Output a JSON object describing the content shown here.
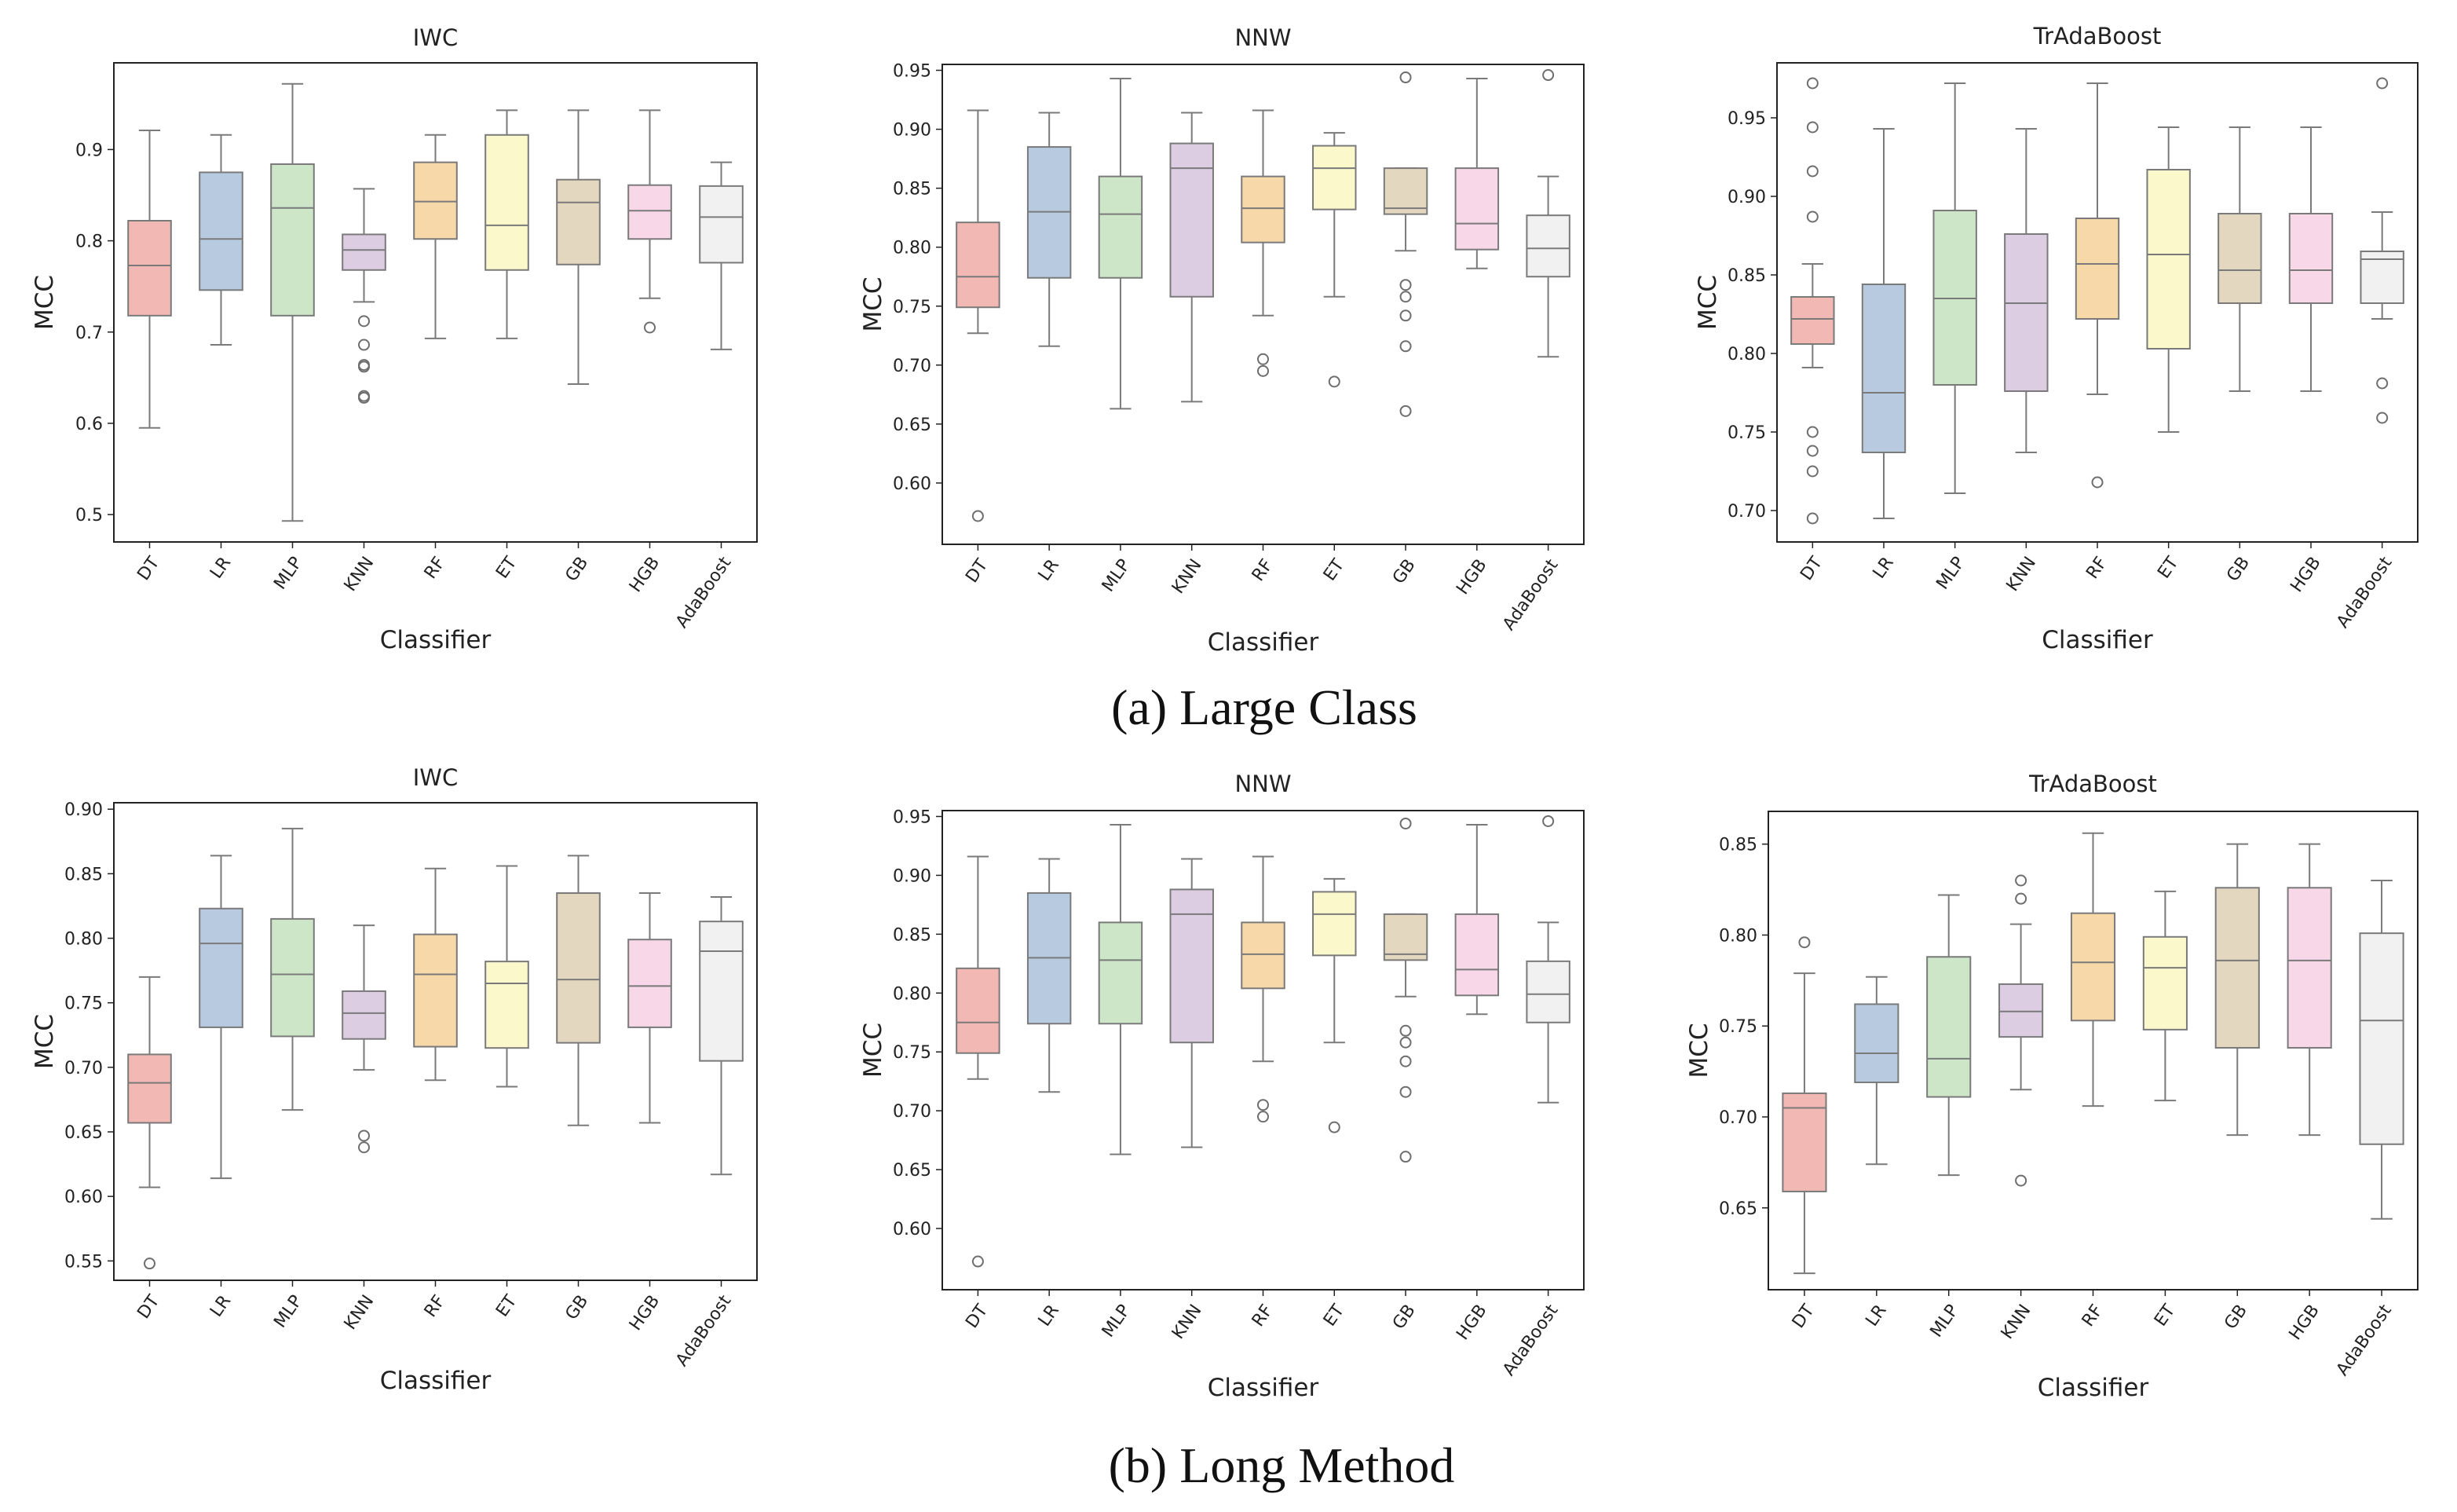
{
  "captions": {
    "top": "(a) Large Class",
    "bottom": "(b) Long Method"
  },
  "palette": [
    "#f2b8b4",
    "#b7cadf",
    "#cde6c7",
    "#dccde2",
    "#f6d8a9",
    "#fbf9cb",
    "#e4d7c0",
    "#f7d7e8",
    "#f1f1f1"
  ],
  "chart_data": [
    {
      "type": "box",
      "title": "IWC",
      "xlabel": "Classifier",
      "ylabel": "MCC",
      "ylim": [
        0.47,
        0.995
      ],
      "yticks": [
        0.5,
        0.6,
        0.7,
        0.8,
        0.9
      ],
      "ytick_labels": [
        "0.5",
        "0.6",
        "0.7",
        "0.8",
        "0.9"
      ],
      "categories": [
        "DT",
        "LR",
        "MLP",
        "KNN",
        "RF",
        "ET",
        "GB",
        "HGB",
        "AdaBoost"
      ],
      "boxes": [
        {
          "whislo": 0.595,
          "q1": 0.718,
          "med": 0.773,
          "q3": 0.822,
          "whishi": 0.921,
          "fliers": []
        },
        {
          "whislo": 0.686,
          "q1": 0.746,
          "med": 0.802,
          "q3": 0.875,
          "whishi": 0.916,
          "fliers": []
        },
        {
          "whislo": 0.493,
          "q1": 0.718,
          "med": 0.836,
          "q3": 0.884,
          "whishi": 0.972,
          "fliers": []
        },
        {
          "whislo": 0.733,
          "q1": 0.768,
          "med": 0.79,
          "q3": 0.807,
          "whishi": 0.857,
          "fliers": [
            0.712,
            0.686,
            0.664,
            0.662,
            0.63,
            0.628
          ]
        },
        {
          "whislo": 0.693,
          "q1": 0.802,
          "med": 0.843,
          "q3": 0.886,
          "whishi": 0.916,
          "fliers": []
        },
        {
          "whislo": 0.693,
          "q1": 0.768,
          "med": 0.817,
          "q3": 0.916,
          "whishi": 0.943,
          "fliers": []
        },
        {
          "whislo": 0.643,
          "q1": 0.774,
          "med": 0.842,
          "q3": 0.867,
          "whishi": 0.943,
          "fliers": []
        },
        {
          "whislo": 0.737,
          "q1": 0.802,
          "med": 0.833,
          "q3": 0.861,
          "whishi": 0.943,
          "fliers": [
            0.705
          ]
        },
        {
          "whislo": 0.681,
          "q1": 0.776,
          "med": 0.826,
          "q3": 0.86,
          "whishi": 0.886,
          "fliers": []
        }
      ]
    },
    {
      "type": "box",
      "title": "NNW",
      "xlabel": "Classifier",
      "ylabel": "MCC",
      "ylim": [
        0.548,
        0.955
      ],
      "yticks": [
        0.6,
        0.65,
        0.7,
        0.75,
        0.8,
        0.85,
        0.9,
        0.95
      ],
      "ytick_labels": [
        "0.60",
        "0.65",
        "0.70",
        "0.75",
        "0.80",
        "0.85",
        "0.90",
        "0.95"
      ],
      "categories": [
        "DT",
        "LR",
        "MLP",
        "KNN",
        "RF",
        "ET",
        "GB",
        "HGB",
        "AdaBoost"
      ],
      "boxes": [
        {
          "whislo": 0.727,
          "q1": 0.749,
          "med": 0.775,
          "q3": 0.821,
          "whishi": 0.916,
          "fliers": [
            0.572
          ]
        },
        {
          "whislo": 0.716,
          "q1": 0.774,
          "med": 0.83,
          "q3": 0.885,
          "whishi": 0.914,
          "fliers": []
        },
        {
          "whislo": 0.663,
          "q1": 0.774,
          "med": 0.828,
          "q3": 0.86,
          "whishi": 0.943,
          "fliers": []
        },
        {
          "whislo": 0.669,
          "q1": 0.758,
          "med": 0.867,
          "q3": 0.888,
          "whishi": 0.914,
          "fliers": []
        },
        {
          "whislo": 0.742,
          "q1": 0.804,
          "med": 0.833,
          "q3": 0.86,
          "whishi": 0.916,
          "fliers": [
            0.705,
            0.695
          ]
        },
        {
          "whislo": 0.758,
          "q1": 0.832,
          "med": 0.867,
          "q3": 0.886,
          "whishi": 0.897,
          "fliers": [
            0.686
          ]
        },
        {
          "whislo": 0.797,
          "q1": 0.828,
          "med": 0.833,
          "q3": 0.867,
          "whishi": 0.867,
          "fliers": [
            0.944,
            0.768,
            0.758,
            0.742,
            0.716,
            0.661
          ]
        },
        {
          "whislo": 0.782,
          "q1": 0.798,
          "med": 0.82,
          "q3": 0.867,
          "whishi": 0.943,
          "fliers": []
        },
        {
          "whislo": 0.707,
          "q1": 0.775,
          "med": 0.799,
          "q3": 0.827,
          "whishi": 0.86,
          "fliers": [
            0.946
          ]
        }
      ]
    },
    {
      "type": "box",
      "title": "TrAdaBoost",
      "xlabel": "Classifier",
      "ylabel": "MCC",
      "ylim": [
        0.68,
        0.985
      ],
      "yticks": [
        0.7,
        0.75,
        0.8,
        0.85,
        0.9,
        0.95
      ],
      "ytick_labels": [
        "0.70",
        "0.75",
        "0.80",
        "0.85",
        "0.90",
        "0.95"
      ],
      "categories": [
        "DT",
        "LR",
        "MLP",
        "KNN",
        "RF",
        "ET",
        "GB",
        "HGB",
        "AdaBoost"
      ],
      "boxes": [
        {
          "whislo": 0.791,
          "q1": 0.806,
          "med": 0.822,
          "q3": 0.836,
          "whishi": 0.857,
          "fliers": [
            0.972,
            0.944,
            0.916,
            0.887,
            0.75,
            0.738,
            0.725,
            0.695
          ]
        },
        {
          "whislo": 0.695,
          "q1": 0.737,
          "med": 0.775,
          "q3": 0.844,
          "whishi": 0.943,
          "fliers": []
        },
        {
          "whislo": 0.711,
          "q1": 0.78,
          "med": 0.835,
          "q3": 0.891,
          "whishi": 0.972,
          "fliers": []
        },
        {
          "whislo": 0.737,
          "q1": 0.776,
          "med": 0.832,
          "q3": 0.876,
          "whishi": 0.943,
          "fliers": []
        },
        {
          "whislo": 0.774,
          "q1": 0.822,
          "med": 0.857,
          "q3": 0.886,
          "whishi": 0.972,
          "fliers": [
            0.718
          ]
        },
        {
          "whislo": 0.75,
          "q1": 0.803,
          "med": 0.863,
          "q3": 0.917,
          "whishi": 0.944,
          "fliers": []
        },
        {
          "whislo": 0.776,
          "q1": 0.832,
          "med": 0.853,
          "q3": 0.889,
          "whishi": 0.944,
          "fliers": []
        },
        {
          "whislo": 0.776,
          "q1": 0.832,
          "med": 0.853,
          "q3": 0.889,
          "whishi": 0.944,
          "fliers": []
        },
        {
          "whislo": 0.822,
          "q1": 0.832,
          "med": 0.86,
          "q3": 0.865,
          "whishi": 0.89,
          "fliers": [
            0.972,
            0.781,
            0.759
          ]
        }
      ]
    },
    {
      "type": "box",
      "title": "IWC",
      "xlabel": "Classifier",
      "ylabel": "MCC",
      "ylim": [
        0.535,
        0.905
      ],
      "yticks": [
        0.55,
        0.6,
        0.65,
        0.7,
        0.75,
        0.8,
        0.85,
        0.9
      ],
      "ytick_labels": [
        "0.55",
        "0.60",
        "0.65",
        "0.70",
        "0.75",
        "0.80",
        "0.85",
        "0.90"
      ],
      "categories": [
        "DT",
        "LR",
        "MLP",
        "KNN",
        "RF",
        "ET",
        "GB",
        "HGB",
        "AdaBoost"
      ],
      "boxes": [
        {
          "whislo": 0.607,
          "q1": 0.657,
          "med": 0.688,
          "q3": 0.71,
          "whishi": 0.77,
          "fliers": [
            0.548
          ]
        },
        {
          "whislo": 0.614,
          "q1": 0.731,
          "med": 0.796,
          "q3": 0.823,
          "whishi": 0.864,
          "fliers": []
        },
        {
          "whislo": 0.667,
          "q1": 0.724,
          "med": 0.772,
          "q3": 0.815,
          "whishi": 0.885,
          "fliers": []
        },
        {
          "whislo": 0.698,
          "q1": 0.722,
          "med": 0.742,
          "q3": 0.759,
          "whishi": 0.81,
          "fliers": [
            0.647,
            0.638
          ]
        },
        {
          "whislo": 0.69,
          "q1": 0.716,
          "med": 0.772,
          "q3": 0.803,
          "whishi": 0.854,
          "fliers": []
        },
        {
          "whislo": 0.685,
          "q1": 0.715,
          "med": 0.765,
          "q3": 0.782,
          "whishi": 0.856,
          "fliers": []
        },
        {
          "whislo": 0.655,
          "q1": 0.719,
          "med": 0.768,
          "q3": 0.835,
          "whishi": 0.864,
          "fliers": []
        },
        {
          "whislo": 0.657,
          "q1": 0.731,
          "med": 0.763,
          "q3": 0.799,
          "whishi": 0.835,
          "fliers": []
        },
        {
          "whislo": 0.617,
          "q1": 0.705,
          "med": 0.79,
          "q3": 0.813,
          "whishi": 0.832,
          "fliers": []
        }
      ]
    },
    {
      "type": "box",
      "title": "NNW",
      "xlabel": "Classifier",
      "ylabel": "MCC",
      "ylim": [
        0.548,
        0.955
      ],
      "yticks": [
        0.6,
        0.65,
        0.7,
        0.75,
        0.8,
        0.85,
        0.9,
        0.95
      ],
      "ytick_labels": [
        "0.60",
        "0.65",
        "0.70",
        "0.75",
        "0.80",
        "0.85",
        "0.90",
        "0.95"
      ],
      "categories": [
        "DT",
        "LR",
        "MLP",
        "KNN",
        "RF",
        "ET",
        "GB",
        "HGB",
        "AdaBoost"
      ],
      "boxes": [
        {
          "whislo": 0.727,
          "q1": 0.749,
          "med": 0.775,
          "q3": 0.821,
          "whishi": 0.916,
          "fliers": [
            0.572
          ]
        },
        {
          "whislo": 0.716,
          "q1": 0.774,
          "med": 0.83,
          "q3": 0.885,
          "whishi": 0.914,
          "fliers": []
        },
        {
          "whislo": 0.663,
          "q1": 0.774,
          "med": 0.828,
          "q3": 0.86,
          "whishi": 0.943,
          "fliers": []
        },
        {
          "whislo": 0.669,
          "q1": 0.758,
          "med": 0.867,
          "q3": 0.888,
          "whishi": 0.914,
          "fliers": []
        },
        {
          "whislo": 0.742,
          "q1": 0.804,
          "med": 0.833,
          "q3": 0.86,
          "whishi": 0.916,
          "fliers": [
            0.705,
            0.695
          ]
        },
        {
          "whislo": 0.758,
          "q1": 0.832,
          "med": 0.867,
          "q3": 0.886,
          "whishi": 0.897,
          "fliers": [
            0.686
          ]
        },
        {
          "whislo": 0.797,
          "q1": 0.828,
          "med": 0.833,
          "q3": 0.867,
          "whishi": 0.867,
          "fliers": [
            0.944,
            0.768,
            0.758,
            0.742,
            0.716,
            0.661
          ]
        },
        {
          "whislo": 0.782,
          "q1": 0.798,
          "med": 0.82,
          "q3": 0.867,
          "whishi": 0.943,
          "fliers": []
        },
        {
          "whislo": 0.707,
          "q1": 0.775,
          "med": 0.799,
          "q3": 0.827,
          "whishi": 0.86,
          "fliers": [
            0.946
          ]
        }
      ]
    },
    {
      "type": "box",
      "title": "TrAdaBoost",
      "xlabel": "Classifier",
      "ylabel": "MCC",
      "ylim": [
        0.605,
        0.868
      ],
      "yticks": [
        0.65,
        0.7,
        0.75,
        0.8,
        0.85
      ],
      "ytick_labels": [
        "0.65",
        "0.70",
        "0.75",
        "0.80",
        "0.85"
      ],
      "categories": [
        "DT",
        "LR",
        "MLP",
        "KNN",
        "RF",
        "ET",
        "GB",
        "HGB",
        "AdaBoost"
      ],
      "boxes": [
        {
          "whislo": 0.614,
          "q1": 0.659,
          "med": 0.705,
          "q3": 0.713,
          "whishi": 0.779,
          "fliers": [
            0.796
          ]
        },
        {
          "whislo": 0.674,
          "q1": 0.719,
          "med": 0.735,
          "q3": 0.762,
          "whishi": 0.777,
          "fliers": []
        },
        {
          "whislo": 0.668,
          "q1": 0.711,
          "med": 0.732,
          "q3": 0.788,
          "whishi": 0.822,
          "fliers": []
        },
        {
          "whislo": 0.715,
          "q1": 0.744,
          "med": 0.758,
          "q3": 0.773,
          "whishi": 0.806,
          "fliers": [
            0.83,
            0.82,
            0.665
          ]
        },
        {
          "whislo": 0.706,
          "q1": 0.753,
          "med": 0.785,
          "q3": 0.812,
          "whishi": 0.856,
          "fliers": []
        },
        {
          "whislo": 0.709,
          "q1": 0.748,
          "med": 0.782,
          "q3": 0.799,
          "whishi": 0.824,
          "fliers": []
        },
        {
          "whislo": 0.69,
          "q1": 0.738,
          "med": 0.786,
          "q3": 0.826,
          "whishi": 0.85,
          "fliers": []
        },
        {
          "whislo": 0.69,
          "q1": 0.738,
          "med": 0.786,
          "q3": 0.826,
          "whishi": 0.85,
          "fliers": []
        },
        {
          "whislo": 0.644,
          "q1": 0.685,
          "med": 0.753,
          "q3": 0.801,
          "whishi": 0.83,
          "fliers": []
        }
      ]
    }
  ]
}
